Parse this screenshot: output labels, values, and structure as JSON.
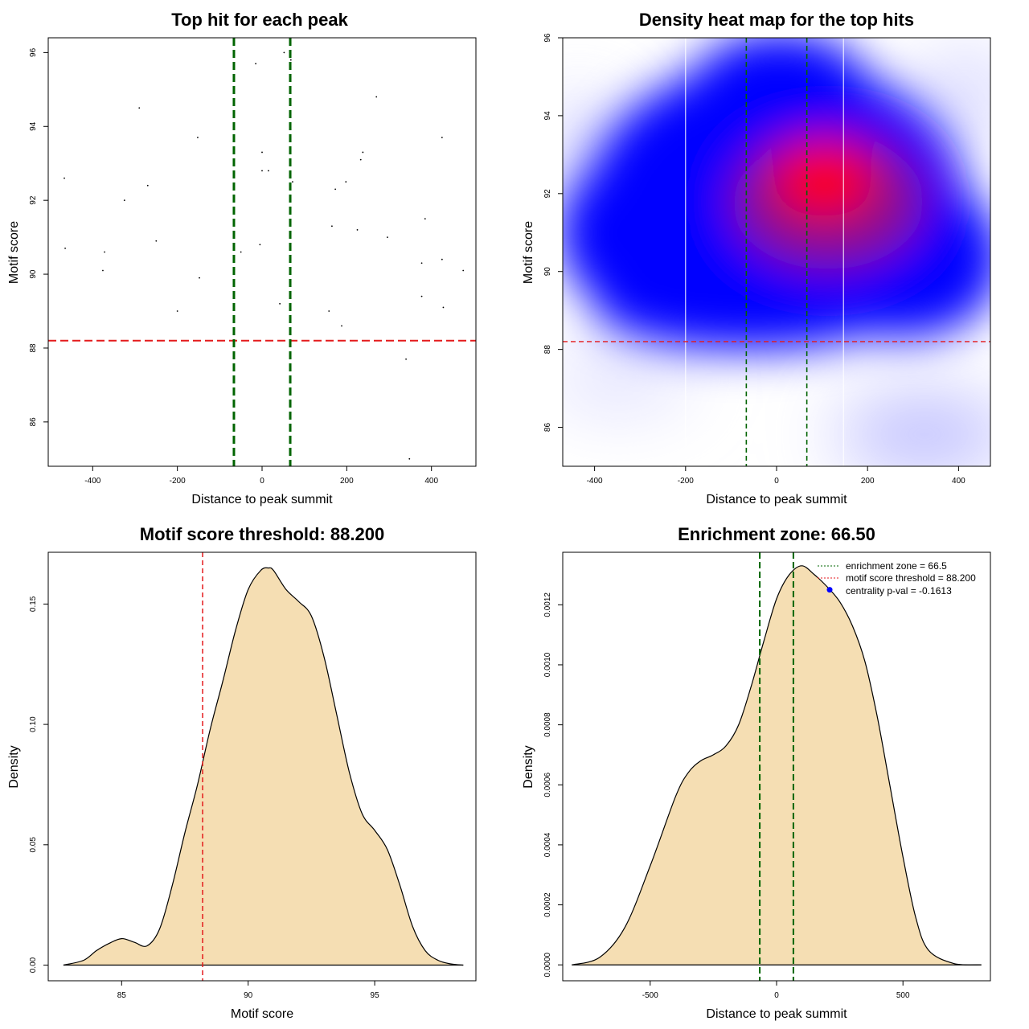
{
  "colors": {
    "threshold": "#e41a1c",
    "zone": "#006400",
    "fill": "#f5deb3",
    "heat_low": "#ffffff",
    "heat_mid": "#0000ff",
    "heat_high": "#ff0000",
    "centrality": "#0000ff"
  },
  "chart_data": [
    {
      "type": "scatter",
      "title": "Top hit for each peak",
      "xlabel": "Distance to peak summit",
      "ylabel": "Motif score",
      "xlim": [
        -505,
        505
      ],
      "ylim": [
        84.8,
        96.4
      ],
      "xticks": [
        -400,
        -200,
        0,
        200,
        400
      ],
      "yticks": [
        86,
        88,
        90,
        92,
        94,
        96
      ],
      "threshold": 88.2,
      "zone": [
        -66.5,
        66.5
      ],
      "points": [
        {
          "x": -467,
          "y": 92.6
        },
        {
          "x": -465,
          "y": 90.7
        },
        {
          "x": -372,
          "y": 90.6
        },
        {
          "x": -376,
          "y": 90.1
        },
        {
          "x": -325,
          "y": 92.0
        },
        {
          "x": -290,
          "y": 94.5
        },
        {
          "x": -270,
          "y": 92.4
        },
        {
          "x": -250,
          "y": 90.9
        },
        {
          "x": -200,
          "y": 89.0
        },
        {
          "x": -152,
          "y": 93.7
        },
        {
          "x": -148,
          "y": 89.9
        },
        {
          "x": -50,
          "y": 90.6
        },
        {
          "x": -15,
          "y": 95.7
        },
        {
          "x": -5,
          "y": 90.8
        },
        {
          "x": 0,
          "y": 93.3
        },
        {
          "x": 0,
          "y": 92.8
        },
        {
          "x": 15,
          "y": 92.8
        },
        {
          "x": 42,
          "y": 89.2
        },
        {
          "x": 52,
          "y": 96.0
        },
        {
          "x": 68,
          "y": 95.8
        },
        {
          "x": 72,
          "y": 92.5
        },
        {
          "x": 158,
          "y": 89.0
        },
        {
          "x": 165,
          "y": 91.3
        },
        {
          "x": 173,
          "y": 92.3
        },
        {
          "x": 188,
          "y": 88.6
        },
        {
          "x": 198,
          "y": 92.5
        },
        {
          "x": 225,
          "y": 91.2
        },
        {
          "x": 233,
          "y": 93.1
        },
        {
          "x": 238,
          "y": 93.3
        },
        {
          "x": 270,
          "y": 94.8
        },
        {
          "x": 296,
          "y": 91.0
        },
        {
          "x": 340,
          "y": 87.7
        },
        {
          "x": 348,
          "y": 85.0
        },
        {
          "x": 377,
          "y": 89.4
        },
        {
          "x": 377,
          "y": 90.3
        },
        {
          "x": 385,
          "y": 91.5
        },
        {
          "x": 425,
          "y": 93.7
        },
        {
          "x": 425,
          "y": 90.4
        },
        {
          "x": 428,
          "y": 89.1
        },
        {
          "x": 475,
          "y": 90.1
        }
      ]
    },
    {
      "type": "heatmap",
      "title": "Density heat map for the top hits",
      "xlabel": "Distance to peak summit",
      "ylabel": "Motif score",
      "xlim": [
        -470,
        470
      ],
      "ylim": [
        85.0,
        96.0
      ],
      "xticks": [
        -400,
        -200,
        0,
        200,
        400
      ],
      "yticks": [
        86,
        88,
        90,
        92,
        94,
        96
      ],
      "threshold": 88.2,
      "zone": [
        -66.5,
        66.5
      ],
      "white_lines": [
        -200,
        147
      ]
    },
    {
      "type": "area",
      "title": "Motif score threshold: 88.200",
      "xlabel": "Motif score",
      "ylabel": "Density",
      "xlim": [
        82.1,
        99.0
      ],
      "ylim": [
        -0.0065,
        0.1715
      ],
      "xticks": [
        85,
        90,
        95
      ],
      "yticks": [
        0.0,
        0.05,
        0.1,
        0.15
      ],
      "ytick_labels": [
        "0.00",
        "0.05",
        "0.10",
        "0.15"
      ],
      "threshold": 88.2,
      "x": [
        82.7,
        83.5,
        84.0,
        84.5,
        85.0,
        85.5,
        86.0,
        86.5,
        87.0,
        87.5,
        88.0,
        88.5,
        89.0,
        89.5,
        90.0,
        90.5,
        90.8,
        91.0,
        91.5,
        92.0,
        92.5,
        93.0,
        93.5,
        94.0,
        94.5,
        95.0,
        95.5,
        96.0,
        96.5,
        97.0,
        97.5,
        98.0,
        98.5
      ],
      "y": [
        0.0,
        0.002,
        0.006,
        0.009,
        0.011,
        0.0095,
        0.008,
        0.015,
        0.033,
        0.055,
        0.075,
        0.098,
        0.118,
        0.139,
        0.156,
        0.164,
        0.165,
        0.164,
        0.156,
        0.151,
        0.145,
        0.128,
        0.104,
        0.08,
        0.063,
        0.056,
        0.048,
        0.033,
        0.016,
        0.006,
        0.002,
        0.0005,
        0.0
      ]
    },
    {
      "type": "area",
      "title": "Enrichment zone: 66.50",
      "xlabel": "Distance to peak summit",
      "ylabel": "Density",
      "xlim": [
        -846,
        846
      ],
      "ylim": [
        -5.3e-05,
        0.001375
      ],
      "xticks": [
        -500,
        0,
        500
      ],
      "yticks": [
        0.0,
        0.0002,
        0.0004,
        0.0006,
        0.0008,
        0.001,
        0.0012
      ],
      "ytick_labels": [
        "0.0000",
        "0.0002",
        "0.0004",
        "0.0006",
        "0.0008",
        "0.0010",
        "0.0012"
      ],
      "zone": [
        -66.5,
        66.5
      ],
      "centrality_point": {
        "x": 210,
        "y": 0.00125
      },
      "x": [
        -810,
        -700,
        -600,
        -500,
        -400,
        -350,
        -300,
        -250,
        -200,
        -150,
        -100,
        -50,
        0,
        50,
        100,
        150,
        200,
        250,
        300,
        350,
        400,
        450,
        500,
        550,
        600,
        700,
        810
      ],
      "y": [
        0.0,
        2.5e-05,
        0.000125,
        0.00033,
        0.00056,
        0.00064,
        0.00068,
        0.0007,
        0.00073,
        0.0008,
        0.00093,
        0.00108,
        0.00122,
        0.0013,
        0.00133,
        0.0013,
        0.00126,
        0.00121,
        0.00113,
        0.00101,
        0.00082,
        0.00059,
        0.00036,
        0.00016,
        5e-05,
        5e-06,
        0.0
      ],
      "legend": [
        "enrichment zone = 66.5",
        "motif score threshold = 88.200",
        "centrality p-val = -0.1613"
      ]
    }
  ]
}
